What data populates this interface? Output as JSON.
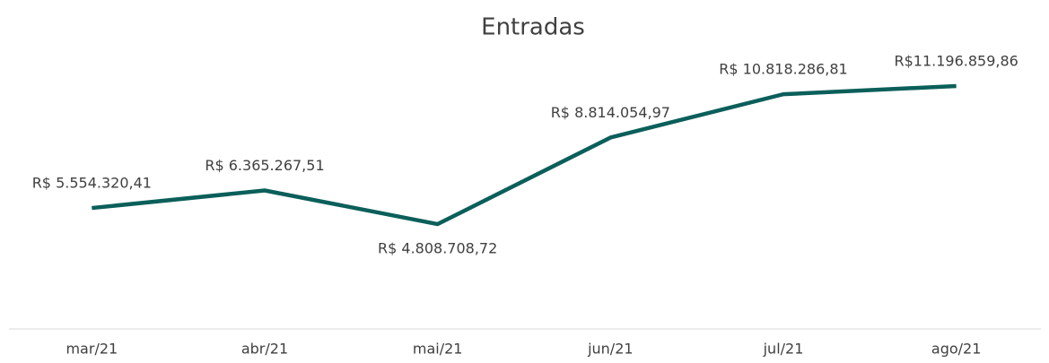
{
  "chart_data": {
    "type": "line",
    "title": "Entradas",
    "categories": [
      "mar/21",
      "abr/21",
      "mai/21",
      "jun/21",
      "jul/21",
      "ago/21"
    ],
    "values": [
      5554320.41,
      6365267.51,
      4808708.72,
      8814054.97,
      10818286.81,
      11196859.86
    ],
    "value_labels": [
      "R$ 5.554.320,41",
      "R$ 6.365.267,51",
      "R$ 4.808.708,72",
      "R$ 8.814.054,97",
      "R$ 10.818.286,81",
      "R$11.196.859,86"
    ],
    "color": "#0b5f5a"
  }
}
